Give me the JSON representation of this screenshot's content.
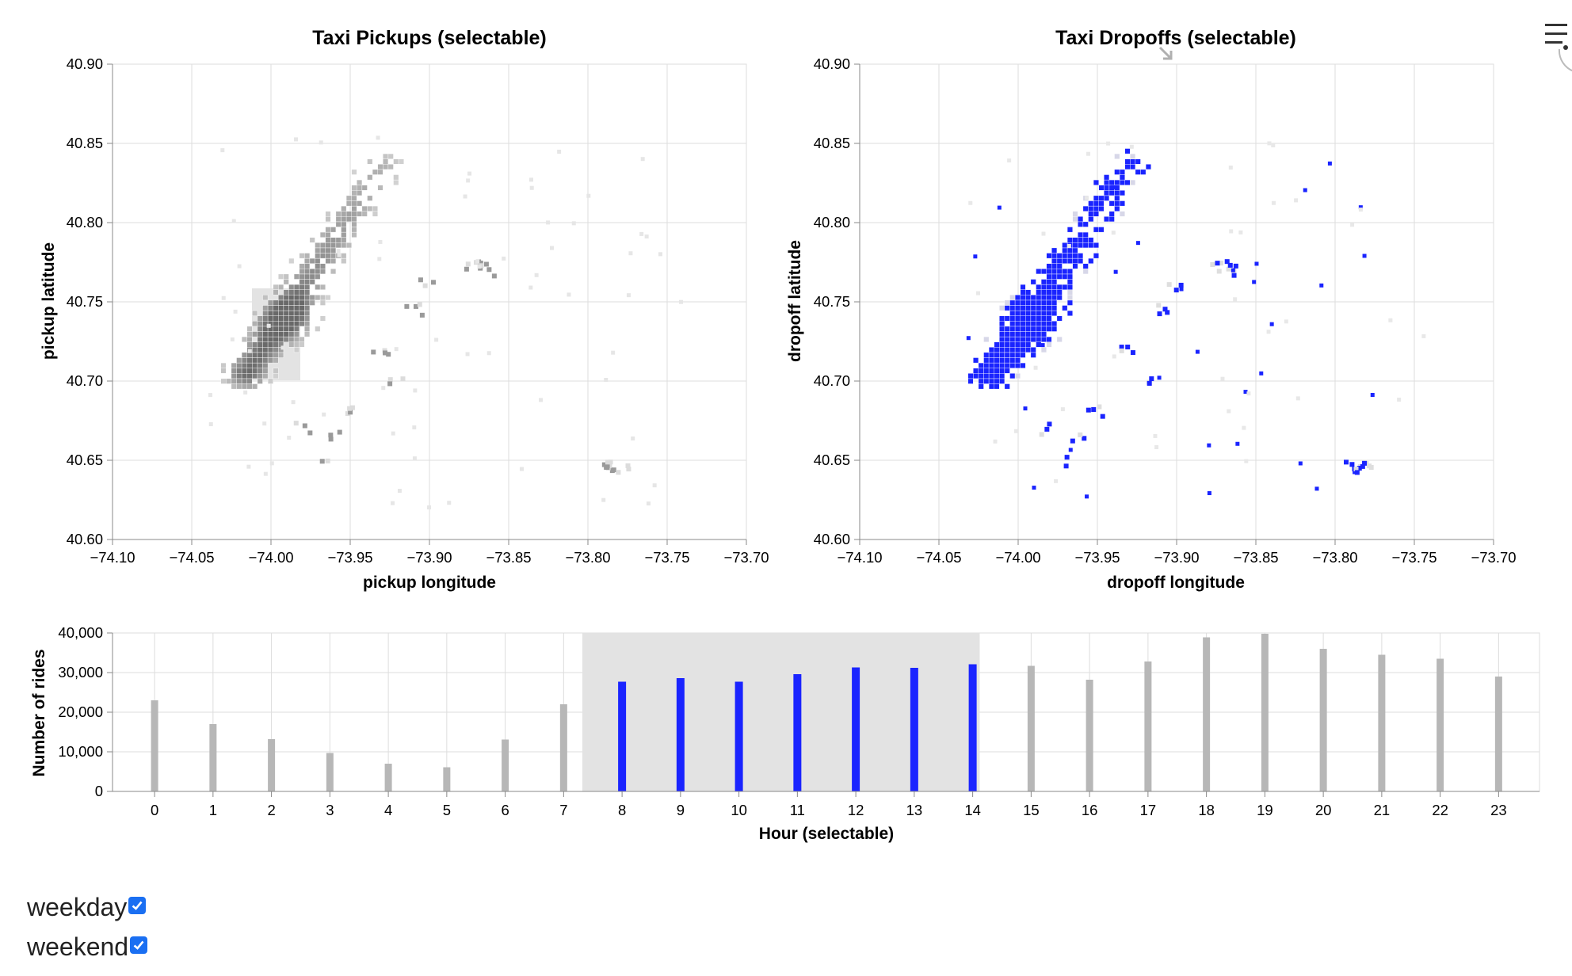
{
  "colors": {
    "selected": "#1a24ff",
    "unselected": "#b7b7b7",
    "brush_fill": "#e3e3e3",
    "grid": "#dddddd",
    "checkbox": "#1a6ff2"
  },
  "menu": {
    "icon": "hamburger-menu-icon"
  },
  "chart_data": [
    {
      "type": "heatmap",
      "title": "Taxi Pickups (selectable)",
      "xlabel": "pickup longitude",
      "ylabel": "pickup latitude",
      "xlim": [
        -74.1,
        -73.7
      ],
      "ylim": [
        40.6,
        40.9
      ],
      "x_ticks": [
        "−74.10",
        "−74.05",
        "−74.00",
        "−73.95",
        "−73.90",
        "−73.85",
        "−73.80",
        "−73.75",
        "−73.70"
      ],
      "y_ticks": [
        "40.60",
        "40.65",
        "40.70",
        "40.75",
        "40.80",
        "40.85",
        "40.90"
      ],
      "selection_brush": {
        "lon": [
          -74.013,
          -73.982
        ],
        "lat": [
          40.704,
          40.758
        ]
      },
      "description_note": "Binned ride density; denser bins rendered darker grey."
    },
    {
      "type": "heatmap",
      "title": "Taxi Dropoffs (selectable)",
      "xlabel": "dropoff longitude",
      "ylabel": "dropoff latitude",
      "xlim": [
        -74.1,
        -73.7
      ],
      "ylim": [
        40.6,
        40.9
      ],
      "x_ticks": [
        "−74.10",
        "−74.05",
        "−74.00",
        "−73.95",
        "−73.90",
        "−73.85",
        "−73.80",
        "−73.75",
        "−73.70"
      ],
      "y_ticks": [
        "40.60",
        "40.65",
        "40.70",
        "40.75",
        "40.80",
        "40.85",
        "40.90"
      ],
      "highlight": "Bins matching the current selection are shown in blue."
    },
    {
      "type": "bar",
      "xlabel": "Hour (selectable)",
      "ylabel": "Number of rides",
      "ylim": [
        0,
        40000
      ],
      "y_ticks": [
        "0",
        "10,000",
        "20,000",
        "30,000",
        "40,000"
      ],
      "categories": [
        "0",
        "1",
        "2",
        "3",
        "4",
        "5",
        "6",
        "7",
        "8",
        "9",
        "10",
        "11",
        "12",
        "13",
        "14",
        "15",
        "16",
        "17",
        "18",
        "19",
        "20",
        "21",
        "22",
        "23"
      ],
      "values": [
        23000,
        17000,
        13200,
        9700,
        7000,
        6100,
        13100,
        22000,
        27700,
        28600,
        27700,
        29600,
        31300,
        31200,
        32100,
        31700,
        28200,
        32800,
        38900,
        39800,
        36000,
        34500,
        33500,
        29000
      ],
      "selected_hours": [
        8,
        14
      ]
    }
  ],
  "controls": [
    {
      "label": "weekday",
      "checked": true
    },
    {
      "label": "weekend",
      "checked": true
    }
  ]
}
